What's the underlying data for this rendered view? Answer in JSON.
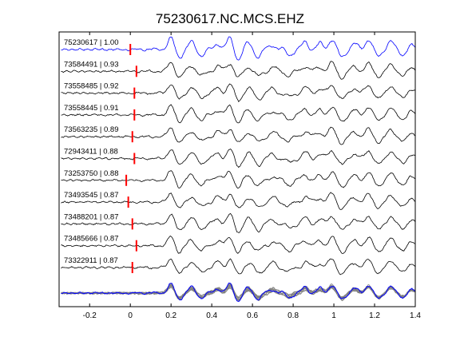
{
  "chart_data": {
    "type": "line",
    "title": "75230617.NC.MCS.EHZ",
    "xlabel": "",
    "ylabel": "",
    "xlim": [
      -0.35,
      1.4
    ],
    "x_ticks": [
      -0.2,
      0,
      0.2,
      0.4,
      0.6,
      0.8,
      1,
      1.2,
      1.4
    ],
    "x_tick_labels": [
      "-0.2",
      "0",
      "0.2",
      "0.4",
      "0.6",
      "0.8",
      "1",
      "1.2",
      "1.4"
    ],
    "grid": false,
    "legend": "none",
    "colors": {
      "reference": "#0000ff",
      "trace": "#000000",
      "stack": "#808080",
      "pick": "#ff0000"
    },
    "series": [
      {
        "label": "75230617 | 1.00",
        "id": "75230617",
        "cc": 1.0,
        "pick_time": 0.0
      },
      {
        "label": "73584491 | 0.93",
        "id": "73584491",
        "cc": 0.93,
        "pick_time": 0.03
      },
      {
        "label": "73558485 | 0.92",
        "id": "73558485",
        "cc": 0.92,
        "pick_time": 0.02
      },
      {
        "label": "73558445 | 0.91",
        "id": "73558445",
        "cc": 0.91,
        "pick_time": 0.02
      },
      {
        "label": "73563235 | 0.89",
        "id": "73563235",
        "cc": 0.89,
        "pick_time": 0.01
      },
      {
        "label": "72943411 | 0.88",
        "id": "72943411",
        "cc": 0.88,
        "pick_time": 0.02
      },
      {
        "label": "73253750 | 0.88",
        "id": "73253750",
        "cc": 0.88,
        "pick_time": -0.02
      },
      {
        "label": "73493545 | 0.87",
        "id": "73493545",
        "cc": 0.87,
        "pick_time": -0.01
      },
      {
        "label": "73488201 | 0.87",
        "id": "73488201",
        "cc": 0.87,
        "pick_time": 0.01
      },
      {
        "label": "73485666 | 0.87",
        "id": "73485666",
        "cc": 0.87,
        "pick_time": 0.03
      },
      {
        "label": "73322911 | 0.87",
        "id": "73322911",
        "cc": 0.87,
        "pick_time": 0.01
      }
    ]
  }
}
